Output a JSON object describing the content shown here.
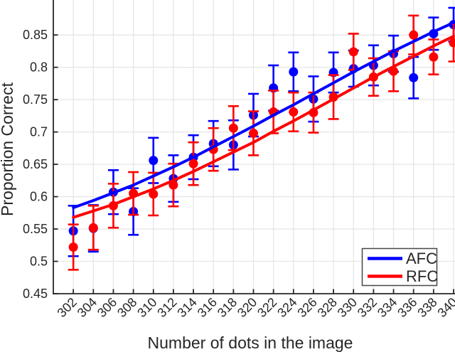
{
  "chart_data": {
    "type": "errorbar-line",
    "xlabel": "Number of dots in the image",
    "ylabel": "Proportion Correct",
    "xlim": [
      300,
      340
    ],
    "ylim": [
      0.45,
      0.9008
    ],
    "grid": true,
    "grid_color": "#e6e6e6",
    "axis_color": "#262626",
    "background_color": "#ffffff",
    "x_ticks": [
      302,
      304,
      306,
      308,
      310,
      312,
      314,
      316,
      318,
      320,
      322,
      324,
      326,
      328,
      330,
      332,
      334,
      336,
      338,
      340
    ],
    "x_tick_labels": [
      "302",
      "304",
      "306",
      "308",
      "310",
      "312",
      "314",
      "316",
      "318",
      "320",
      "322",
      "324",
      "326",
      "328",
      "330",
      "332",
      "334",
      "336",
      "338",
      "340"
    ],
    "y_ticks": [
      0.45,
      0.5,
      0.55,
      0.6,
      0.65,
      0.7,
      0.75,
      0.8,
      0.85
    ],
    "y_tick_labels": [
      "0.45",
      "0.5",
      "0.55",
      "0.6",
      "0.65",
      "0.7",
      "0.75",
      "0.8",
      "0.85"
    ],
    "x": [
      302,
      304,
      306,
      308,
      310,
      312,
      314,
      316,
      318,
      320,
      322,
      324,
      326,
      328,
      330,
      332,
      334,
      336,
      338,
      340
    ],
    "series": [
      {
        "name": "AFC",
        "color": "#0000ff",
        "marker": "circle",
        "values": [
          0.547,
          0.551,
          0.607,
          0.577,
          0.656,
          0.628,
          0.661,
          0.682,
          0.68,
          0.726,
          0.768,
          0.793,
          0.751,
          0.792,
          0.798,
          0.803,
          0.821,
          0.784,
          0.852,
          0.866
        ],
        "errors": [
          0.039,
          0.036,
          0.034,
          0.036,
          0.035,
          0.036,
          0.034,
          0.035,
          0.038,
          0.033,
          0.035,
          0.03,
          0.035,
          0.031,
          0.028,
          0.031,
          0.028,
          0.032,
          0.025,
          0.026
        ],
        "fit_curve": [
          0.583,
          0.594,
          0.606,
          0.618,
          0.632,
          0.646,
          0.661,
          0.677,
          0.693,
          0.709,
          0.726,
          0.742,
          0.759,
          0.776,
          0.793,
          0.809,
          0.825,
          0.84,
          0.855,
          0.869
        ]
      },
      {
        "name": "RFC",
        "color": "#ff0000",
        "marker": "circle",
        "values": [
          0.522,
          0.552,
          0.586,
          0.605,
          0.604,
          0.618,
          0.651,
          0.673,
          0.706,
          0.698,
          0.731,
          0.731,
          0.73,
          0.754,
          0.824,
          0.785,
          0.794,
          0.85,
          0.816,
          0.838
        ],
        "errors": [
          0.035,
          0.034,
          0.034,
          0.033,
          0.033,
          0.033,
          0.033,
          0.033,
          0.034,
          0.034,
          0.033,
          0.03,
          0.031,
          0.034,
          0.028,
          0.029,
          0.031,
          0.03,
          0.027,
          0.029
        ],
        "fit_curve": [
          0.568,
          0.578,
          0.588,
          0.6,
          0.612,
          0.625,
          0.639,
          0.654,
          0.669,
          0.684,
          0.701,
          0.717,
          0.734,
          0.751,
          0.768,
          0.785,
          0.801,
          0.817,
          0.833,
          0.848
        ]
      }
    ],
    "legend": {
      "position": "south-east",
      "entries": [
        "AFC",
        "RFC"
      ]
    }
  }
}
